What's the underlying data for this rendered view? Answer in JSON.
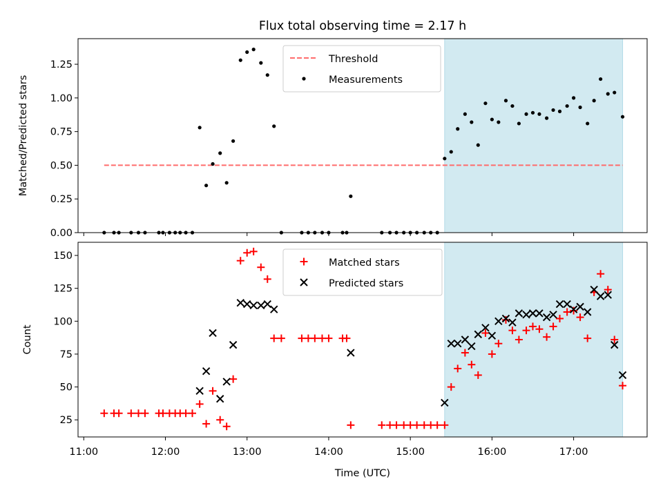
{
  "title": "Flux total observing time = 2.17 h",
  "colors": {
    "highlight": "#add8e6",
    "threshold": "#ff6b6b",
    "matched": "#ff0000",
    "predicted": "#000000",
    "measurement": "#000000"
  },
  "chart_data": [
    {
      "type": "scatter",
      "ylabel": "Matched/Predicted stars",
      "ylim": [
        0,
        1.44
      ],
      "yticks": [
        0,
        0.25,
        0.5,
        0.75,
        1.0,
        1.25
      ],
      "ytick_labels": [
        "0.00",
        "0.25",
        "0.50",
        "0.75",
        "1.00",
        "1.25"
      ],
      "xlim": [
        10.93,
        17.9
      ],
      "highlight_span": [
        15.42,
        17.6
      ],
      "legend": [
        {
          "label": "Threshold",
          "style": "dashed-line"
        },
        {
          "label": "Measurements",
          "style": "dot"
        }
      ],
      "threshold": {
        "value": 0.5,
        "x_range": [
          11.25,
          17.6
        ]
      },
      "series": [
        {
          "name": "Measurements",
          "x": [
            11.25,
            11.37,
            11.43,
            11.58,
            11.67,
            11.75,
            11.92,
            11.97,
            12.05,
            12.12,
            12.18,
            12.25,
            12.33,
            12.42,
            12.5,
            12.58,
            12.67,
            12.75,
            12.83,
            12.92,
            13.0,
            13.08,
            13.17,
            13.25,
            13.33,
            13.42,
            13.67,
            13.75,
            13.83,
            13.92,
            14.0,
            14.17,
            14.22,
            14.27,
            14.65,
            14.75,
            14.83,
            14.92,
            15.0,
            15.08,
            15.17,
            15.25,
            15.33,
            15.42,
            15.5,
            15.58,
            15.67,
            15.75,
            15.83,
            15.92,
            16.0,
            16.08,
            16.17,
            16.25,
            16.33,
            16.42,
            16.5,
            16.58,
            16.67,
            16.75,
            16.83,
            16.92,
            17.0,
            17.08,
            17.17,
            17.25,
            17.33,
            17.42,
            17.5,
            17.6
          ],
          "y": [
            0,
            0,
            0,
            0,
            0,
            0,
            0,
            0,
            0,
            0,
            0,
            0,
            0,
            0.78,
            0.35,
            0.51,
            0.59,
            0.37,
            0.68,
            1.28,
            1.34,
            1.36,
            1.26,
            1.17,
            0.79,
            0,
            0,
            0,
            0,
            0,
            0,
            0,
            0,
            0.27,
            0,
            0,
            0,
            0,
            0,
            0,
            0,
            0,
            0,
            0.55,
            0.6,
            0.77,
            0.88,
            0.82,
            0.65,
            0.96,
            0.84,
            0.82,
            0.98,
            0.94,
            0.81,
            0.88,
            0.89,
            0.88,
            0.85,
            0.91,
            0.9,
            0.94,
            1.0,
            0.93,
            0.81,
            0.98,
            1.14,
            1.03,
            1.04,
            0.86
          ]
        }
      ]
    },
    {
      "type": "scatter",
      "ylabel": "Count",
      "xlabel": "Time (UTC)",
      "ylim": [
        12,
        160
      ],
      "yticks": [
        25,
        50,
        75,
        100,
        125,
        150
      ],
      "ytick_labels": [
        "25",
        "50",
        "75",
        "100",
        "125",
        "150"
      ],
      "xlim": [
        10.93,
        17.9
      ],
      "xticks": [
        11,
        12,
        13,
        14,
        15,
        16,
        17
      ],
      "xtick_labels": [
        "11:00",
        "12:00",
        "13:00",
        "14:00",
        "15:00",
        "16:00",
        "17:00"
      ],
      "highlight_span": [
        15.42,
        17.6
      ],
      "legend": [
        {
          "label": "Matched stars",
          "style": "plus"
        },
        {
          "label": "Predicted stars",
          "style": "x"
        }
      ],
      "series": [
        {
          "name": "Matched stars",
          "x": [
            11.25,
            11.37,
            11.43,
            11.58,
            11.67,
            11.75,
            11.92,
            11.97,
            12.05,
            12.12,
            12.18,
            12.25,
            12.33,
            12.42,
            12.5,
            12.58,
            12.67,
            12.75,
            12.83,
            12.92,
            13.0,
            13.08,
            13.17,
            13.25,
            13.33,
            13.42,
            13.67,
            13.75,
            13.83,
            13.92,
            14.0,
            14.17,
            14.22,
            14.27,
            14.65,
            14.75,
            14.83,
            14.92,
            15.0,
            15.08,
            15.17,
            15.25,
            15.33,
            15.42,
            15.5,
            15.58,
            15.67,
            15.75,
            15.83,
            15.92,
            16.0,
            16.08,
            16.17,
            16.25,
            16.33,
            16.42,
            16.5,
            16.58,
            16.67,
            16.75,
            16.83,
            16.92,
            17.0,
            17.08,
            17.17,
            17.25,
            17.33,
            17.42,
            17.5,
            17.6
          ],
          "y": [
            30,
            30,
            30,
            30,
            30,
            30,
            30,
            30,
            30,
            30,
            30,
            30,
            30,
            37,
            22,
            47,
            25,
            20,
            56,
            146,
            152,
            153,
            141,
            132,
            87,
            87,
            87,
            87,
            87,
            87,
            87,
            87,
            87,
            21,
            21,
            21,
            21,
            21,
            21,
            21,
            21,
            21,
            21,
            21,
            50,
            64,
            76,
            67,
            59,
            91,
            75,
            83,
            101,
            93,
            86,
            93,
            96,
            94,
            88,
            96,
            102,
            107,
            108,
            103,
            87,
            122,
            136,
            124,
            86,
            51
          ]
        },
        {
          "name": "Predicted stars",
          "x": [
            12.42,
            12.5,
            12.58,
            12.67,
            12.75,
            12.83,
            12.92,
            13.0,
            13.08,
            13.17,
            13.25,
            13.33,
            14.27,
            15.42,
            15.5,
            15.58,
            15.67,
            15.75,
            15.83,
            15.92,
            16.0,
            16.08,
            16.17,
            16.25,
            16.33,
            16.42,
            16.5,
            16.58,
            16.67,
            16.75,
            16.83,
            16.92,
            17.0,
            17.08,
            17.17,
            17.25,
            17.33,
            17.42,
            17.5,
            17.6
          ],
          "y": [
            47,
            62,
            91,
            41,
            54,
            82,
            114,
            113,
            112,
            112,
            113,
            109,
            76,
            38,
            83,
            83,
            86,
            81,
            90,
            95,
            89,
            100,
            102,
            99,
            106,
            105,
            106,
            106,
            103,
            105,
            113,
            113,
            109,
            111,
            107,
            124,
            119,
            120,
            82,
            59
          ]
        }
      ]
    }
  ]
}
